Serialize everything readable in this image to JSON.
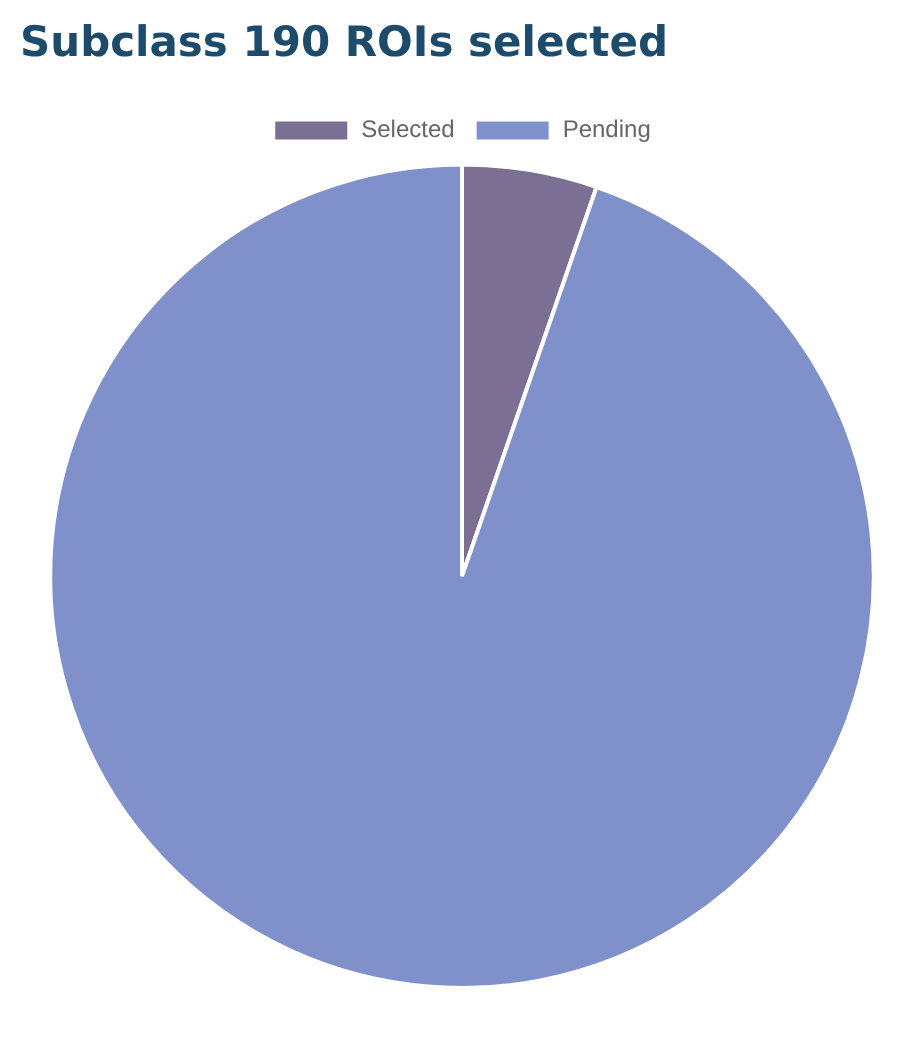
{
  "chart_data": {
    "type": "pie",
    "title": "Subclass 190 ROIs selected",
    "categories": [
      "Selected",
      "Pending"
    ],
    "values": [
      5.3,
      94.7
    ],
    "colors": [
      "#7b6f93",
      "#7f90cb"
    ],
    "legend": "top"
  }
}
